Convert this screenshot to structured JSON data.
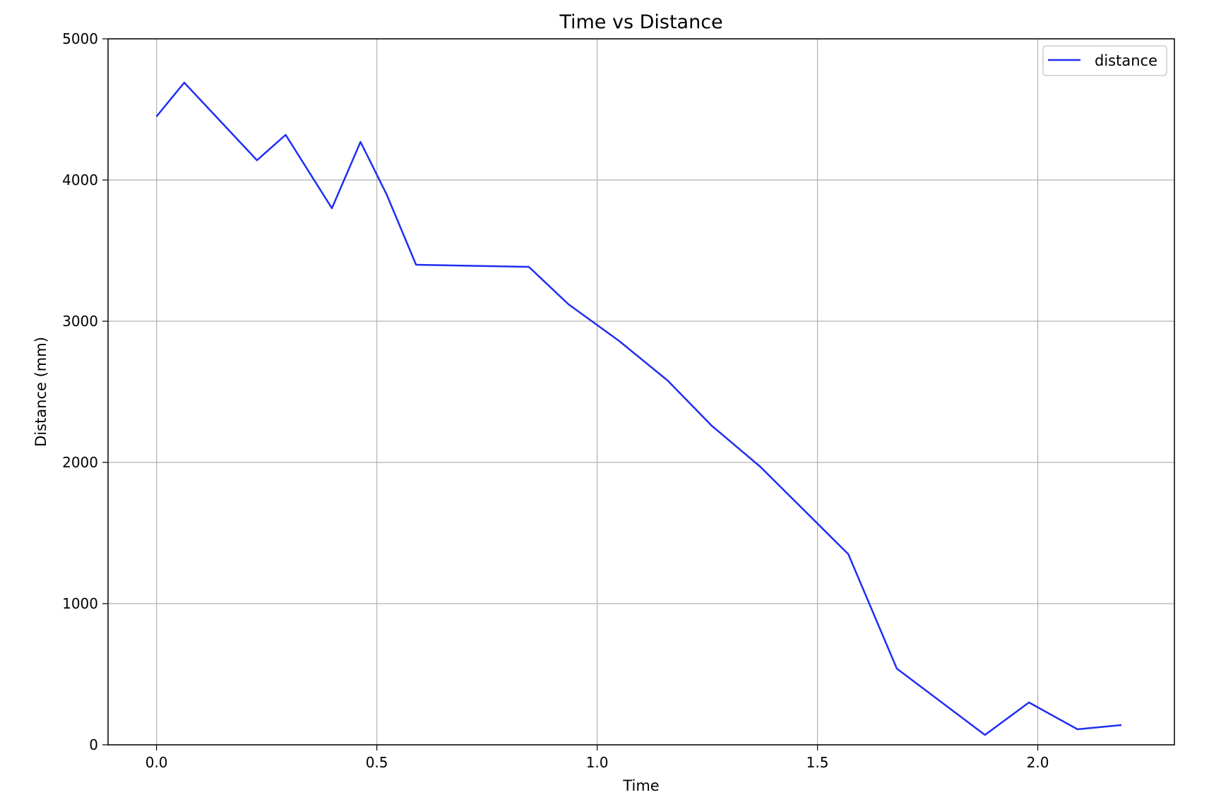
{
  "chart_data": {
    "type": "line",
    "title": "Time vs Distance",
    "xlabel": "Time",
    "ylabel": "Distance (mm)",
    "xlim": [
      -0.11,
      2.31
    ],
    "ylim": [
      0,
      5000
    ],
    "xticks": [
      0.0,
      0.5,
      1.0,
      1.5,
      2.0
    ],
    "xtick_labels": [
      "0.0",
      "0.5",
      "1.0",
      "1.5",
      "2.0"
    ],
    "yticks": [
      0,
      1000,
      2000,
      3000,
      4000,
      5000
    ],
    "ytick_labels": [
      "0",
      "1000",
      "2000",
      "3000",
      "4000",
      "5000"
    ],
    "grid": true,
    "legend": "top-right",
    "series": [
      {
        "name": "distance",
        "color": "#1f2ef2",
        "x": [
          0.0,
          0.063,
          0.228,
          0.293,
          0.398,
          0.463,
          0.522,
          0.589,
          0.845,
          0.935,
          1.05,
          1.16,
          1.26,
          1.37,
          1.47,
          1.57,
          1.68,
          1.88,
          1.98,
          2.09,
          2.19
        ],
        "y": [
          4450,
          4690,
          4140,
          4320,
          3800,
          4270,
          3900,
          3400,
          3385,
          3120,
          2860,
          2580,
          2260,
          1970,
          1660,
          1350,
          540,
          70,
          300,
          110,
          140
        ]
      }
    ]
  }
}
